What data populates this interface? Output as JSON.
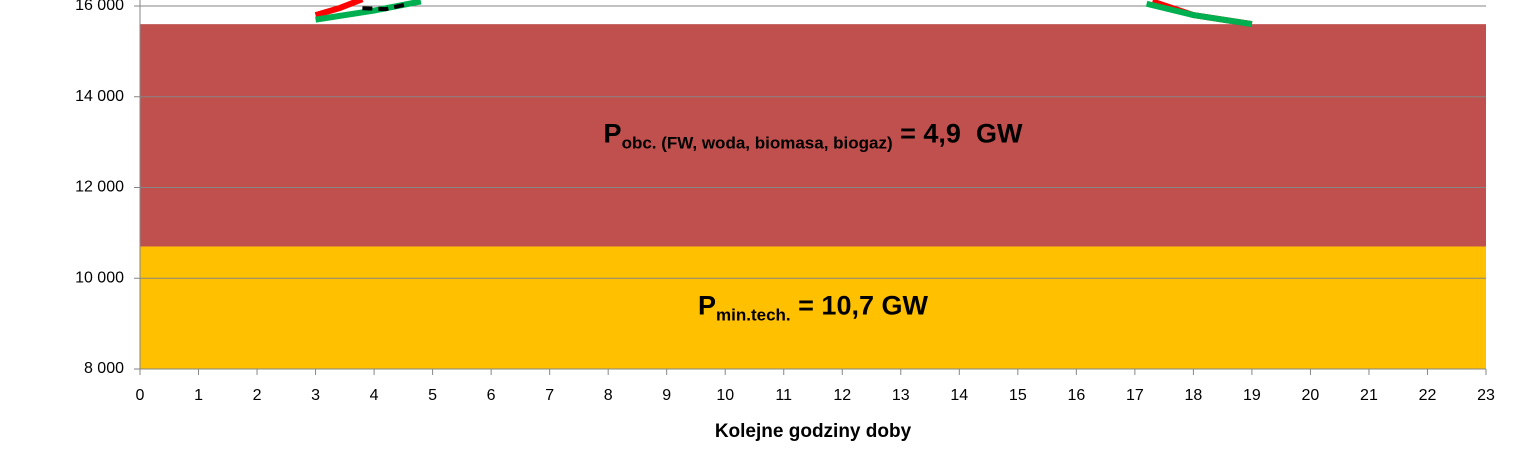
{
  "chart_data": {
    "type": "area",
    "x_label": "Kolejne godziny doby",
    "xlim": [
      0,
      23
    ],
    "xticks": [
      0,
      1,
      2,
      3,
      4,
      5,
      6,
      7,
      8,
      9,
      10,
      11,
      12,
      13,
      14,
      15,
      16,
      17,
      18,
      19,
      20,
      21,
      22,
      23
    ],
    "ylim": [
      8000,
      16000
    ],
    "yticks": [
      {
        "value": 8000,
        "label": "8 000"
      },
      {
        "value": 10000,
        "label": "10 000"
      },
      {
        "value": 12000,
        "label": "12 000"
      },
      {
        "value": 14000,
        "label": "14 000"
      },
      {
        "value": 16000,
        "label": "16 000"
      }
    ],
    "grid": true,
    "bands": [
      {
        "color": "#ffc000",
        "value": 10700,
        "label": {
          "main": "P",
          "sub": "min.tech.",
          "rest": " = 10,7 GW"
        }
      },
      {
        "color": "#c0504d",
        "value": 4900,
        "label": {
          "main": "P",
          "sub": "obc. (FW, woda, biomasa, biogaz)",
          "rest": " = 4,9  GW"
        }
      }
    ],
    "lines": [
      {
        "color": "#ff0000",
        "dash": false,
        "x": [
          3,
          3.4,
          3.8
        ],
        "values": [
          15800,
          15950,
          16150
        ]
      },
      {
        "color": "#00b050",
        "dash": false,
        "x": [
          3,
          4,
          4.8
        ],
        "values": [
          15700,
          15900,
          16100
        ]
      },
      {
        "color": "#000000",
        "dash": true,
        "x": [
          3.8,
          4.2,
          4.6
        ],
        "values": [
          15950,
          15930,
          16050
        ]
      },
      {
        "color": "#ff0000",
        "dash": false,
        "x": [
          17.3,
          18,
          19
        ],
        "values": [
          16100,
          15800,
          15600
        ]
      },
      {
        "color": "#00b050",
        "dash": false,
        "x": [
          17.2,
          18,
          19
        ],
        "values": [
          16050,
          15800,
          15600
        ]
      }
    ]
  }
}
